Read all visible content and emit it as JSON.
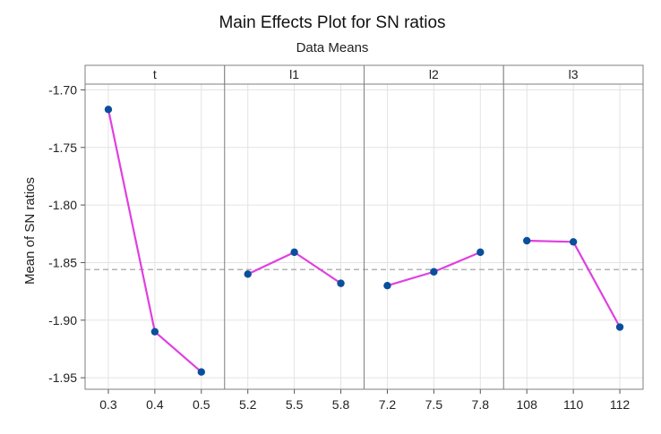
{
  "chart_data": {
    "type": "line",
    "title": "Main Effects Plot for SN ratios",
    "subtitle": "Data Means",
    "ylabel": "Mean of SN ratios",
    "ylim": [
      -1.96,
      -1.695
    ],
    "yticks": [
      -1.7,
      -1.75,
      -1.8,
      -1.85,
      -1.9,
      -1.95
    ],
    "ytick_labels": [
      "-1.70",
      "-1.75",
      "-1.80",
      "-1.85",
      "-1.90",
      "-1.95"
    ],
    "reference_line": -1.856,
    "grid": true,
    "colors": {
      "line": "#e040e0",
      "marker": "#0a4f9c",
      "reference": "#9a9a9a",
      "grid": "#e3e3e3",
      "border": "#7f7f7f",
      "strip": "#ffffff"
    },
    "panels": [
      {
        "factor": "t",
        "levels": [
          "0.3",
          "0.4",
          "0.5"
        ],
        "values": [
          -1.717,
          -1.91,
          -1.945
        ]
      },
      {
        "factor": "l1",
        "levels": [
          "5.2",
          "5.5",
          "5.8"
        ],
        "values": [
          -1.86,
          -1.841,
          -1.868
        ]
      },
      {
        "factor": "l2",
        "levels": [
          "7.2",
          "7.5",
          "7.8"
        ],
        "values": [
          -1.87,
          -1.858,
          -1.841
        ]
      },
      {
        "factor": "l3",
        "levels": [
          "108",
          "110",
          "112"
        ],
        "values": [
          -1.831,
          -1.832,
          -1.906
        ]
      }
    ]
  }
}
